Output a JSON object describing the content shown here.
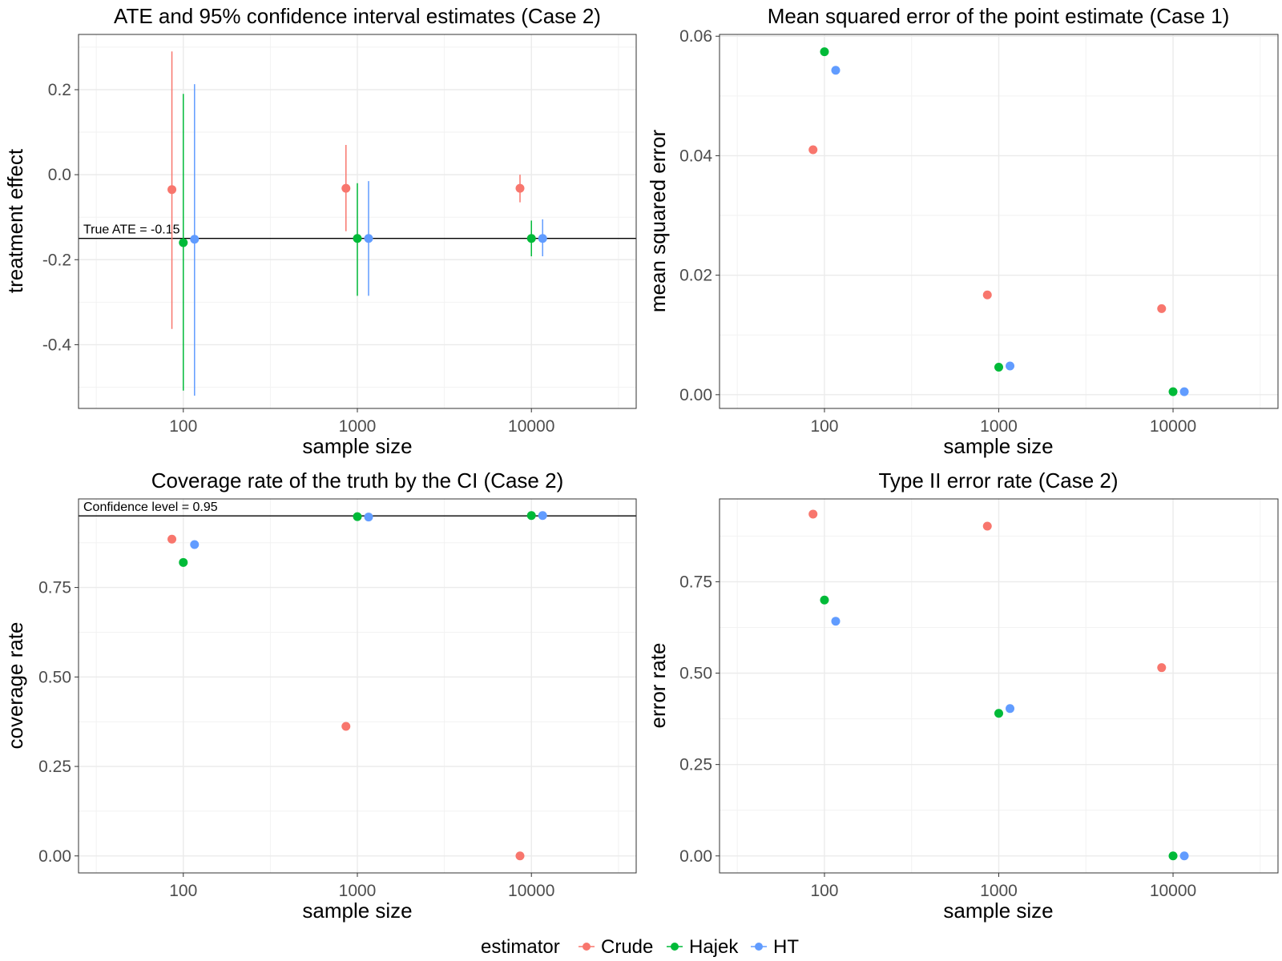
{
  "colors": {
    "Crude": "#F8766D",
    "Hajek": "#00BA38",
    "HT": "#619CFF",
    "grid_major": "#EBEBEB",
    "grid_minor": "#F2F2F2",
    "border": "#333333"
  },
  "legend": {
    "title": "estimator",
    "items": [
      "Crude",
      "Hajek",
      "HT"
    ]
  },
  "chart_data": [
    {
      "type": "scatter",
      "title": "ATE and 95% confidence interval estimates (Case 2)",
      "xlabel": "sample size",
      "ylabel": "treatment effect",
      "x_scale": "log10",
      "x_ticks": [
        100,
        1000,
        10000
      ],
      "x_tick_labels": [
        "100",
        "1000",
        "10000"
      ],
      "xlim": [
        25,
        40000
      ],
      "ylim": [
        -0.55,
        0.33
      ],
      "y_ticks": [
        0.2,
        0.0,
        -0.2,
        -0.4
      ],
      "y_tick_labels": [
        "0.2",
        "0.0",
        "-0.2",
        "-0.4"
      ],
      "hline": {
        "y": -0.15,
        "label": "True ATE = -0.15"
      },
      "series": [
        {
          "name": "Crude",
          "x": [
            86,
            860,
            8600
          ],
          "y": [
            -0.035,
            -0.032,
            -0.032
          ],
          "ymin": [
            -0.363,
            -0.133,
            -0.065
          ],
          "ymax": [
            0.29,
            0.07,
            0.0
          ]
        },
        {
          "name": "Hajek",
          "x": [
            100,
            1000,
            10000
          ],
          "y": [
            -0.16,
            -0.15,
            -0.15
          ],
          "ymin": [
            -0.508,
            -0.285,
            -0.192
          ],
          "ymax": [
            0.19,
            -0.02,
            -0.108
          ]
        },
        {
          "name": "HT",
          "x": [
            116,
            1160,
            11600
          ],
          "y": [
            -0.152,
            -0.15,
            -0.15
          ],
          "ymin": [
            -0.52,
            -0.285,
            -0.192
          ],
          "ymax": [
            0.213,
            -0.015,
            -0.105
          ]
        }
      ]
    },
    {
      "type": "scatter",
      "title": "Mean squared error of the point estimate (Case 1)",
      "xlabel": "sample size",
      "ylabel": "mean squared error",
      "x_scale": "log10",
      "x_ticks": [
        100,
        1000,
        10000
      ],
      "x_tick_labels": [
        "100",
        "1000",
        "10000"
      ],
      "xlim": [
        25,
        40000
      ],
      "ylim": [
        -0.0023,
        0.0603
      ],
      "y_ticks": [
        0.0,
        0.02,
        0.04,
        0.06
      ],
      "y_tick_labels": [
        "0.00",
        "0.02",
        "0.04",
        "0.06"
      ],
      "series": [
        {
          "name": "Crude",
          "x": [
            86,
            860,
            8600
          ],
          "y": [
            0.041,
            0.0167,
            0.0144
          ]
        },
        {
          "name": "Hajek",
          "x": [
            100,
            1000,
            10000
          ],
          "y": [
            0.0574,
            0.0046,
            0.0005
          ]
        },
        {
          "name": "HT",
          "x": [
            116,
            1160,
            11600
          ],
          "y": [
            0.0543,
            0.0048,
            0.0005
          ]
        }
      ]
    },
    {
      "type": "scatter",
      "title": "Coverage rate of the truth by the CI (Case 2)",
      "xlabel": "sample size",
      "ylabel": "coverage rate",
      "x_scale": "log10",
      "x_ticks": [
        100,
        1000,
        10000
      ],
      "x_tick_labels": [
        "100",
        "1000",
        "10000"
      ],
      "xlim": [
        25,
        40000
      ],
      "ylim": [
        -0.0475,
        0.9975
      ],
      "y_ticks": [
        0.0,
        0.25,
        0.5,
        0.75
      ],
      "y_tick_labels": [
        "0.00",
        "0.25",
        "0.50",
        "0.75"
      ],
      "hline": {
        "y": 0.95,
        "label": "Confidence level = 0.95"
      },
      "series": [
        {
          "name": "Crude",
          "x": [
            86,
            860,
            8600
          ],
          "y": [
            0.885,
            0.362,
            0.0
          ]
        },
        {
          "name": "Hajek",
          "x": [
            100,
            1000,
            10000
          ],
          "y": [
            0.82,
            0.948,
            0.951
          ]
        },
        {
          "name": "HT",
          "x": [
            116,
            1160,
            11600
          ],
          "y": [
            0.87,
            0.947,
            0.951
          ]
        }
      ]
    },
    {
      "type": "scatter",
      "title": "Type II error rate (Case 2)",
      "xlabel": "sample size",
      "ylabel": "error rate",
      "x_scale": "log10",
      "x_ticks": [
        100,
        1000,
        10000
      ],
      "x_tick_labels": [
        "100",
        "1000",
        "10000"
      ],
      "xlim": [
        25,
        40000
      ],
      "ylim": [
        -0.0465,
        0.9765
      ],
      "y_ticks": [
        0.0,
        0.25,
        0.5,
        0.75
      ],
      "y_tick_labels": [
        "0.00",
        "0.25",
        "0.50",
        "0.75"
      ],
      "series": [
        {
          "name": "Crude",
          "x": [
            86,
            860,
            8600
          ],
          "y": [
            0.935,
            0.902,
            0.515
          ]
        },
        {
          "name": "Hajek",
          "x": [
            100,
            1000,
            10000
          ],
          "y": [
            0.7,
            0.39,
            0.0
          ]
        },
        {
          "name": "HT",
          "x": [
            116,
            1160,
            11600
          ],
          "y": [
            0.642,
            0.403,
            0.0
          ]
        }
      ]
    }
  ]
}
